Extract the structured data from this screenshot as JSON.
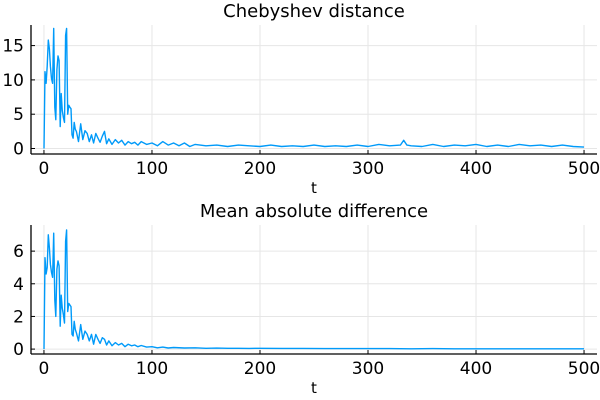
{
  "chart_data": [
    {
      "type": "line",
      "title": "Chebyshev distance",
      "xlabel": "t",
      "ylabel": "",
      "xlim": [
        -12,
        512
      ],
      "ylim": [
        -0.8,
        18
      ],
      "xticks": [
        0,
        100,
        200,
        300,
        400,
        500
      ],
      "yticks": [
        0,
        5,
        10,
        15
      ],
      "grid": true,
      "legend": "none",
      "color": "#009AF9",
      "series": [
        {
          "x": [
            0,
            1,
            2,
            3,
            4,
            5,
            6,
            7,
            8,
            9,
            10,
            11,
            12,
            13,
            14,
            15,
            16,
            17,
            18,
            19,
            20,
            21,
            22,
            23,
            24,
            25,
            26,
            27,
            28,
            29,
            30,
            32,
            34,
            36,
            38,
            40,
            42,
            44,
            46,
            48,
            50,
            52,
            54,
            56,
            58,
            60,
            63,
            66,
            69,
            72,
            75,
            78,
            81,
            84,
            87,
            90,
            95,
            100,
            105,
            110,
            115,
            120,
            125,
            130,
            135,
            140,
            150,
            160,
            170,
            180,
            190,
            200,
            210,
            220,
            230,
            240,
            250,
            260,
            270,
            280,
            290,
            300,
            310,
            320,
            330,
            333,
            336,
            340,
            350,
            360,
            370,
            380,
            390,
            400,
            410,
            420,
            430,
            440,
            450,
            460,
            470,
            480,
            490,
            500
          ],
          "y": [
            0.0,
            11.2,
            9.5,
            12.0,
            15.8,
            14.5,
            12.0,
            10.2,
            9.5,
            17.5,
            6.0,
            4.2,
            11.5,
            13.5,
            12.8,
            3.2,
            8.0,
            5.5,
            4.5,
            3.8,
            16.5,
            17.5,
            5.0,
            6.3,
            6.0,
            5.8,
            2.0,
            1.5,
            3.8,
            2.8,
            2.5,
            1.0,
            3.6,
            1.3,
            2.6,
            2.2,
            1.0,
            2.0,
            0.8,
            2.2,
            1.5,
            0.9,
            1.8,
            2.5,
            0.7,
            1.4,
            0.6,
            1.3,
            0.8,
            1.2,
            0.5,
            1.0,
            0.7,
            0.9,
            0.5,
            1.0,
            0.6,
            0.8,
            0.4,
            1.0,
            0.5,
            0.8,
            0.4,
            0.8,
            0.3,
            0.6,
            0.4,
            0.5,
            0.3,
            0.5,
            0.4,
            0.3,
            0.5,
            0.3,
            0.4,
            0.3,
            0.5,
            0.3,
            0.4,
            0.3,
            0.5,
            0.3,
            0.6,
            0.4,
            0.5,
            1.2,
            0.5,
            0.4,
            0.3,
            0.6,
            0.3,
            0.5,
            0.4,
            0.6,
            0.3,
            0.5,
            0.3,
            0.6,
            0.4,
            0.5,
            0.3,
            0.5,
            0.3,
            0.2
          ]
        }
      ]
    },
    {
      "type": "line",
      "title": "Mean absolute difference",
      "xlabel": "t",
      "ylabel": "",
      "xlim": [
        -12,
        512
      ],
      "ylim": [
        -0.3,
        7.6
      ],
      "xticks": [
        0,
        100,
        200,
        300,
        400,
        500
      ],
      "yticks": [
        0,
        2,
        4,
        6
      ],
      "grid": true,
      "legend": "none",
      "color": "#009AF9",
      "series": [
        {
          "x": [
            0,
            1,
            2,
            3,
            4,
            5,
            6,
            7,
            8,
            9,
            10,
            11,
            12,
            13,
            14,
            15,
            16,
            17,
            18,
            19,
            20,
            21,
            22,
            23,
            24,
            25,
            26,
            27,
            28,
            29,
            30,
            32,
            34,
            36,
            38,
            40,
            42,
            44,
            46,
            48,
            50,
            52,
            54,
            56,
            58,
            60,
            63,
            66,
            69,
            72,
            75,
            78,
            81,
            84,
            87,
            90,
            95,
            100,
            105,
            110,
            115,
            120,
            130,
            140,
            150,
            160,
            170,
            180,
            190,
            200,
            220,
            240,
            260,
            280,
            300,
            320,
            340,
            360,
            380,
            400,
            420,
            440,
            460,
            480,
            500
          ],
          "y": [
            0.0,
            5.6,
            4.6,
            5.0,
            7.0,
            6.2,
            5.2,
            4.7,
            4.4,
            7.1,
            3.0,
            2.0,
            4.9,
            5.4,
            5.1,
            1.4,
            3.3,
            2.5,
            2.1,
            1.6,
            6.6,
            7.3,
            2.3,
            2.8,
            2.7,
            2.6,
            0.9,
            0.8,
            1.7,
            1.2,
            1.0,
            0.5,
            1.5,
            0.6,
            1.1,
            0.9,
            0.5,
            0.9,
            0.3,
            0.9,
            0.6,
            0.35,
            0.7,
            0.6,
            0.25,
            0.5,
            0.2,
            0.4,
            0.25,
            0.35,
            0.15,
            0.3,
            0.2,
            0.25,
            0.15,
            0.22,
            0.12,
            0.15,
            0.08,
            0.12,
            0.07,
            0.1,
            0.07,
            0.08,
            0.05,
            0.06,
            0.05,
            0.05,
            0.04,
            0.05,
            0.04,
            0.04,
            0.03,
            0.03,
            0.03,
            0.03,
            0.02,
            0.03,
            0.02,
            0.02,
            0.02,
            0.02,
            0.02,
            0.02,
            0.02
          ]
        }
      ]
    }
  ]
}
